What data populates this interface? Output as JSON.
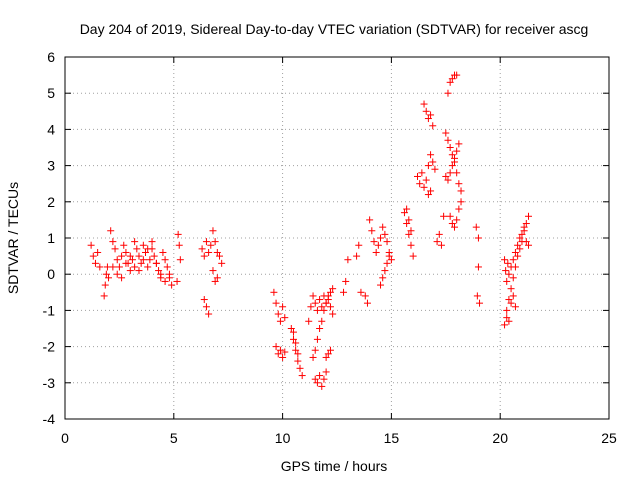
{
  "chart_data": {
    "type": "scatter",
    "title": "Day 204 of 2019, Sidereal Day-to-day VTEC variation (SDTVAR) for receiver ascg",
    "xlabel": "GPS time / hours",
    "ylabel": "SDTVAR / TECUs",
    "xlim": [
      0,
      25
    ],
    "ylim": [
      -4,
      6
    ],
    "xticks": [
      "0",
      "5",
      "10",
      "15",
      "20",
      "25"
    ],
    "yticks": [
      "-4",
      "-3",
      "-2",
      "-1",
      "0",
      "1",
      "2",
      "3",
      "4",
      "5",
      "6"
    ],
    "grid": true,
    "marker": "plus",
    "colors": {
      "series": "#ff0000",
      "grid": "#a0a0a0",
      "axis": "#000000"
    },
    "series": [
      {
        "name": "ascg",
        "x": [
          1.2,
          1.3,
          1.4,
          1.5,
          1.6,
          1.8,
          1.85,
          1.9,
          1.95,
          2.0,
          2.1,
          2.2,
          2.3,
          2.4,
          2.5,
          2.6,
          2.7,
          2.8,
          2.9,
          3.0,
          3.1,
          3.2,
          3.3,
          3.4,
          3.5,
          3.6,
          3.7,
          3.8,
          3.9,
          4.0,
          4.1,
          4.2,
          4.3,
          4.4,
          4.5,
          4.6,
          4.7,
          4.8,
          4.9,
          2.2,
          2.4,
          2.6,
          2.8,
          3.0,
          3.2,
          3.4,
          3.6,
          3.8,
          4.0,
          4.2,
          4.4,
          4.6,
          4.8,
          5.2,
          5.25,
          5.3,
          5.15,
          6.3,
          6.4,
          6.5,
          6.6,
          6.7,
          6.8,
          6.9,
          7.0,
          7.1,
          7.2,
          6.4,
          6.5,
          6.6,
          6.8,
          6.9,
          7.0,
          9.6,
          9.7,
          9.8,
          9.9,
          10.0,
          10.1,
          9.7,
          9.8,
          9.9,
          10.0,
          10.1,
          10.4,
          10.5,
          10.6,
          10.7,
          10.8,
          10.9,
          10.5,
          10.6,
          10.7,
          11.2,
          11.3,
          11.4,
          11.5,
          11.6,
          11.7,
          11.8,
          11.9,
          12.0,
          12.1,
          12.2,
          12.3,
          11.5,
          11.6,
          11.7,
          11.8,
          11.9,
          12.0,
          11.4,
          11.5,
          11.6,
          11.7,
          11.8,
          11.9,
          12.0,
          12.1,
          12.2,
          12.3,
          12.0,
          12.1,
          12.2,
          12.8,
          12.9,
          13.0,
          13.4,
          13.5,
          13.6,
          13.8,
          13.9,
          14.0,
          14.1,
          14.2,
          14.3,
          14.4,
          14.5,
          14.6,
          14.7,
          14.8,
          14.9,
          15.0,
          14.5,
          14.6,
          14.7,
          14.8,
          14.9,
          15.6,
          15.7,
          15.8,
          15.9,
          16.0,
          15.7,
          15.8,
          15.9,
          16.2,
          16.3,
          16.4,
          16.5,
          16.6,
          16.7,
          16.8,
          16.9,
          17.0,
          16.5,
          16.6,
          16.7,
          16.8,
          16.9,
          16.7,
          16.8,
          17.1,
          17.2,
          17.3,
          17.4,
          17.5,
          17.6,
          17.7,
          17.5,
          17.6,
          17.7,
          17.8,
          17.9,
          18.0,
          18.1,
          18.2,
          17.6,
          17.7,
          17.8,
          17.9,
          18.0,
          17.7,
          17.8,
          17.9,
          18.0,
          18.1,
          18.2,
          17.8,
          17.9,
          18.0,
          18.1,
          18.9,
          19.0,
          19.0,
          18.95,
          19.05,
          20.2,
          20.25,
          20.3,
          20.35,
          20.4,
          20.5,
          20.6,
          20.7,
          20.8,
          20.9,
          21.0,
          21.1,
          21.2,
          21.3,
          20.3,
          20.4,
          20.5,
          20.6,
          20.7,
          20.2,
          20.3,
          20.4,
          20.5,
          20.6,
          20.7,
          20.8,
          20.9,
          21.0,
          21.1,
          21.2,
          21.3
        ],
        "y": [
          0.8,
          0.5,
          0.3,
          0.6,
          0.2,
          -0.6,
          -0.3,
          0.0,
          0.2,
          -0.1,
          1.2,
          0.9,
          0.7,
          0.4,
          0.2,
          0.5,
          0.8,
          0.6,
          0.3,
          0.1,
          0.4,
          0.9,
          0.7,
          0.5,
          0.3,
          0.8,
          0.6,
          0.2,
          0.4,
          0.7,
          0.5,
          0.3,
          0.1,
          -0.1,
          0.6,
          0.4,
          0.2,
          0.0,
          -0.3,
          0.2,
          0.0,
          -0.1,
          0.3,
          0.5,
          0.2,
          0.1,
          0.4,
          0.7,
          0.9,
          0.3,
          0.0,
          -0.2,
          -0.1,
          1.1,
          0.8,
          0.4,
          -0.2,
          0.7,
          0.5,
          0.9,
          0.6,
          0.8,
          1.2,
          0.9,
          0.6,
          0.5,
          0.3,
          -0.7,
          -0.9,
          -1.1,
          0.1,
          -0.2,
          -0.1,
          -0.5,
          -0.8,
          -1.1,
          -1.3,
          -0.9,
          -1.2,
          -2.0,
          -2.2,
          -2.1,
          -2.3,
          -2.15,
          -1.5,
          -1.8,
          -2.1,
          -2.4,
          -2.6,
          -2.8,
          -1.6,
          -1.9,
          -2.2,
          -1.3,
          -0.9,
          -0.6,
          -0.8,
          -1.0,
          -0.7,
          -0.9,
          -0.6,
          -0.8,
          -0.7,
          -0.9,
          -1.1,
          -2.9,
          -3.0,
          -2.8,
          -3.1,
          -2.9,
          -2.7,
          -2.3,
          -2.1,
          -1.8,
          -1.5,
          -1.3,
          -1.0,
          -0.8,
          -0.6,
          -0.5,
          -0.4,
          -2.3,
          -2.2,
          -2.1,
          -0.5,
          -0.2,
          0.4,
          0.5,
          0.8,
          -0.5,
          -0.6,
          -0.8,
          1.5,
          1.2,
          0.9,
          0.6,
          0.8,
          1.0,
          1.3,
          1.1,
          0.9,
          0.6,
          0.4,
          -0.3,
          -0.1,
          0.1,
          0.3,
          0.5,
          1.7,
          1.4,
          1.1,
          0.8,
          0.5,
          1.8,
          1.5,
          1.2,
          2.7,
          2.5,
          2.8,
          2.4,
          2.6,
          3.0,
          3.3,
          3.1,
          2.9,
          4.7,
          4.5,
          4.3,
          4.4,
          4.1,
          2.2,
          2.3,
          0.9,
          1.1,
          0.8,
          1.6,
          2.7,
          2.6,
          2.8,
          3.9,
          3.7,
          3.5,
          3.3,
          3.1,
          2.8,
          2.5,
          2.3,
          5.0,
          5.3,
          5.4,
          5.5,
          5.5,
          1.6,
          1.4,
          1.3,
          1.5,
          1.8,
          2.0,
          3.0,
          3.2,
          3.4,
          3.6,
          1.3,
          1.0,
          0.2,
          -0.6,
          -0.8,
          0.4,
          0.1,
          -0.2,
          0.3,
          0.0,
          0.2,
          0.4,
          0.6,
          0.8,
          1.0,
          1.1,
          1.3,
          1.4,
          1.6,
          -1.0,
          -1.3,
          -0.8,
          -0.6,
          -0.9,
          -1.4,
          -1.2,
          -0.7,
          -0.4,
          -0.1,
          0.2,
          0.5,
          0.7,
          0.9,
          1.2,
          0.9,
          0.8
        ]
      }
    ]
  }
}
